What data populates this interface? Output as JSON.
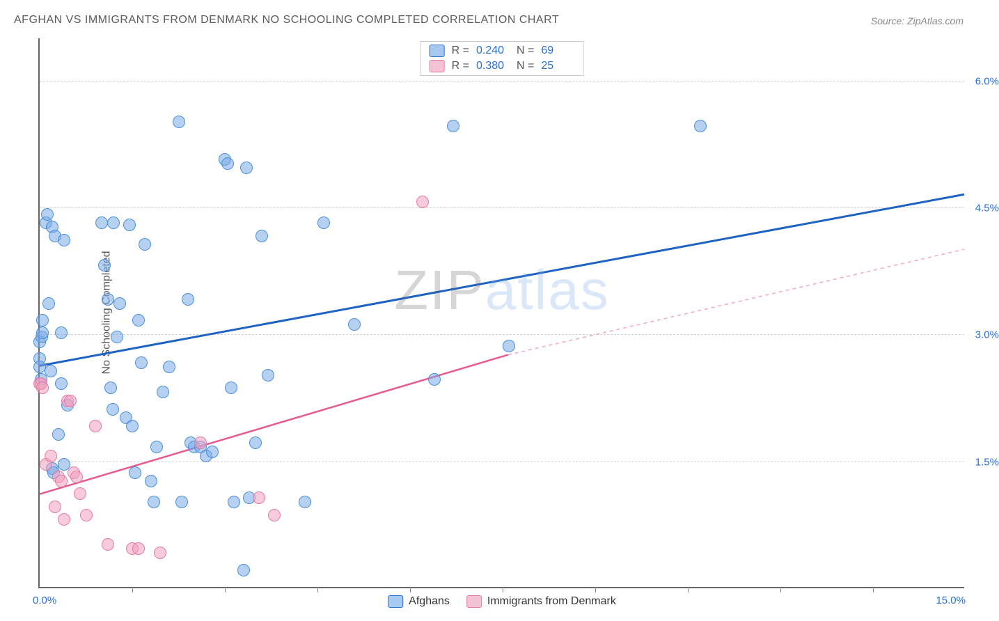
{
  "title": "AFGHAN VS IMMIGRANTS FROM DENMARK NO SCHOOLING COMPLETED CORRELATION CHART",
  "source": "Source: ZipAtlas.com",
  "ylabel": "No Schooling Completed",
  "watermark_parts": [
    "ZIP",
    "atlas"
  ],
  "chart": {
    "type": "scatter",
    "xlim": [
      0,
      15
    ],
    "ylim": [
      0,
      6.5
    ],
    "x_min_label": "0.0%",
    "x_max_label": "15.0%",
    "y_ticks": [
      1.5,
      3.0,
      4.5,
      6.0
    ],
    "y_tick_labels": [
      "1.5%",
      "3.0%",
      "4.5%",
      "6.0%"
    ],
    "x_ticks": [
      1.5,
      3.0,
      4.5,
      6.0,
      7.5,
      9.0,
      10.5,
      12.0,
      13.5
    ],
    "background_color": "#ffffff",
    "grid_color": "#d0d0d0",
    "axis_color": "#666666",
    "tick_label_color": "#2a6fd6",
    "point_radius": 9,
    "legend_top": [
      {
        "swatch": "blue",
        "r_label": "R =",
        "r": "0.240",
        "n_label": "N =",
        "n": "69"
      },
      {
        "swatch": "pink",
        "r_label": "R =",
        "r": "0.380",
        "n_label": "N =",
        "n": "25"
      }
    ],
    "legend_bottom": [
      {
        "swatch": "blue",
        "label": "Afghans"
      },
      {
        "swatch": "pink",
        "label": "Immigrants from Denmark"
      }
    ],
    "series": [
      {
        "name": "Afghans",
        "color_fill": "rgba(120,170,230,0.55)",
        "color_stroke": "#4a90d9",
        "trend": {
          "x1": 0,
          "y1": 2.62,
          "x2": 15,
          "y2": 4.65,
          "stroke": "#1e63c4",
          "width": 3,
          "dash": null
        },
        "points": [
          [
            0.0,
            2.9
          ],
          [
            0.0,
            2.7
          ],
          [
            0.0,
            2.6
          ],
          [
            0.02,
            2.45
          ],
          [
            0.03,
            2.95
          ],
          [
            0.05,
            3.0
          ],
          [
            0.05,
            3.15
          ],
          [
            0.1,
            4.3
          ],
          [
            0.12,
            4.4
          ],
          [
            0.15,
            3.35
          ],
          [
            0.18,
            2.55
          ],
          [
            0.2,
            4.25
          ],
          [
            0.2,
            1.4
          ],
          [
            0.22,
            1.35
          ],
          [
            0.25,
            4.15
          ],
          [
            0.3,
            1.8
          ],
          [
            0.35,
            2.4
          ],
          [
            0.35,
            3.0
          ],
          [
            0.4,
            4.1
          ],
          [
            0.4,
            1.45
          ],
          [
            0.45,
            2.15
          ],
          [
            1.0,
            4.3
          ],
          [
            1.05,
            3.8
          ],
          [
            1.1,
            3.4
          ],
          [
            1.15,
            2.35
          ],
          [
            1.18,
            2.1
          ],
          [
            1.2,
            4.3
          ],
          [
            1.25,
            2.95
          ],
          [
            1.3,
            3.35
          ],
          [
            1.4,
            2.0
          ],
          [
            1.45,
            4.28
          ],
          [
            1.5,
            1.9
          ],
          [
            1.55,
            1.35
          ],
          [
            1.6,
            3.15
          ],
          [
            1.65,
            2.65
          ],
          [
            1.7,
            4.05
          ],
          [
            1.8,
            1.25
          ],
          [
            1.85,
            1.0
          ],
          [
            1.9,
            1.65
          ],
          [
            2.0,
            2.3
          ],
          [
            2.1,
            2.6
          ],
          [
            2.25,
            5.5
          ],
          [
            2.3,
            1.0
          ],
          [
            2.4,
            3.4
          ],
          [
            2.45,
            1.7
          ],
          [
            2.5,
            1.65
          ],
          [
            2.6,
            1.65
          ],
          [
            2.7,
            1.55
          ],
          [
            2.8,
            1.6
          ],
          [
            3.0,
            5.05
          ],
          [
            3.05,
            5.0
          ],
          [
            3.1,
            2.35
          ],
          [
            3.15,
            1.0
          ],
          [
            3.3,
            0.2
          ],
          [
            3.35,
            4.95
          ],
          [
            3.4,
            1.05
          ],
          [
            3.5,
            1.7
          ],
          [
            3.6,
            4.15
          ],
          [
            3.7,
            2.5
          ],
          [
            4.3,
            1.0
          ],
          [
            4.6,
            4.3
          ],
          [
            5.1,
            3.1
          ],
          [
            6.4,
            2.45
          ],
          [
            6.7,
            5.45
          ],
          [
            7.6,
            2.85
          ],
          [
            10.7,
            5.45
          ]
        ]
      },
      {
        "name": "Immigrants from Denmark",
        "color_fill": "rgba(240,160,190,0.55)",
        "color_stroke": "#e57ba6",
        "trend_solid": {
          "x1": 0,
          "y1": 1.1,
          "x2": 7.6,
          "y2": 2.75,
          "stroke": "#e65a8f",
          "width": 2.5
        },
        "trend_dash": {
          "x1": 7.6,
          "y1": 2.75,
          "x2": 15,
          "y2": 4.0,
          "stroke": "#f2a6bf",
          "width": 1.5,
          "dash": "5,5"
        },
        "points": [
          [
            0.0,
            2.4
          ],
          [
            0.02,
            2.4
          ],
          [
            0.05,
            2.35
          ],
          [
            0.1,
            1.45
          ],
          [
            0.18,
            1.55
          ],
          [
            0.25,
            0.95
          ],
          [
            0.3,
            1.3
          ],
          [
            0.35,
            1.25
          ],
          [
            0.4,
            0.8
          ],
          [
            0.45,
            2.2
          ],
          [
            0.5,
            2.2
          ],
          [
            0.55,
            1.35
          ],
          [
            0.6,
            1.3
          ],
          [
            0.65,
            1.1
          ],
          [
            0.75,
            0.85
          ],
          [
            0.9,
            1.9
          ],
          [
            1.1,
            0.5
          ],
          [
            1.5,
            0.45
          ],
          [
            1.6,
            0.45
          ],
          [
            1.95,
            0.4
          ],
          [
            2.6,
            1.7
          ],
          [
            3.55,
            1.05
          ],
          [
            3.8,
            0.85
          ],
          [
            6.2,
            4.55
          ]
        ]
      }
    ]
  }
}
